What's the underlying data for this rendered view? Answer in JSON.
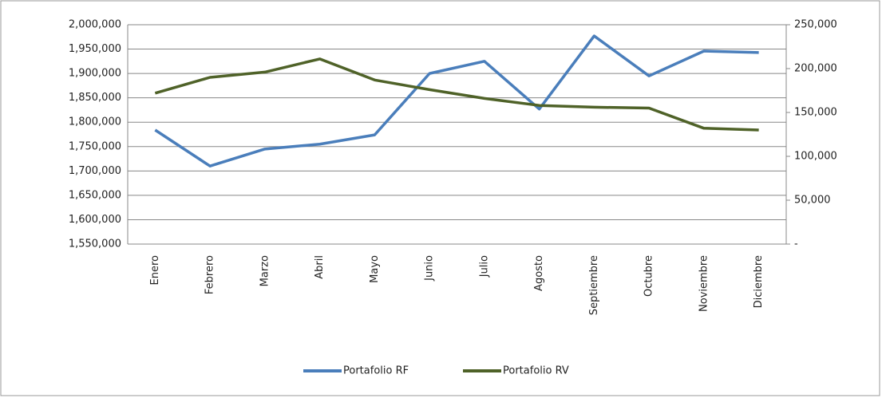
{
  "chart_data": {
    "type": "line",
    "categories": [
      "Enero",
      "Febrero",
      "Marzo",
      "Abril",
      "Mayo",
      "Junio",
      "Julio",
      "Agosto",
      "Septiembre",
      "Octubre",
      "Noviembre",
      "Diciembre"
    ],
    "series": [
      {
        "name": "Portafolio RF",
        "color": "#4a7ebb",
        "values": [
          1784000,
          1710000,
          1745000,
          1755000,
          1774000,
          1900000,
          1925000,
          1827000,
          1977000,
          1895000,
          1946000,
          1943000
        ]
      },
      {
        "name": "Portafolio RV",
        "color": "#4f6228",
        "axis": "y2",
        "values": [
          172000,
          190000,
          196000,
          211000,
          187000,
          176000,
          166000,
          158000,
          156000,
          155000,
          132000,
          130000
        ]
      }
    ],
    "ylim": [
      1550000,
      2000000
    ],
    "yticks": [
      {
        "value": 1550000,
        "label": "1,550,000"
      },
      {
        "value": 1600000,
        "label": "1,600,000"
      },
      {
        "value": 1650000,
        "label": "1,650,000"
      },
      {
        "value": 1700000,
        "label": "1,700,000"
      },
      {
        "value": 1750000,
        "label": "1,750,000"
      },
      {
        "value": 1800000,
        "label": "1,800,000"
      },
      {
        "value": 1850000,
        "label": "1,850,000"
      },
      {
        "value": 1900000,
        "label": "1,900,000"
      },
      {
        "value": 1950000,
        "label": "1,950,000"
      },
      {
        "value": 2000000,
        "label": "2,000,000"
      }
    ],
    "y2lim": [
      0,
      250000
    ],
    "y2ticks": [
      {
        "value": 0,
        "label": "-"
      },
      {
        "value": 50000,
        "label": "50,000"
      },
      {
        "value": 100000,
        "label": "100,000"
      },
      {
        "value": 150000,
        "label": "150,000"
      },
      {
        "value": 200000,
        "label": "200,000"
      },
      {
        "value": 250000,
        "label": "250,000"
      }
    ],
    "grid": true,
    "legend": "bottom"
  }
}
